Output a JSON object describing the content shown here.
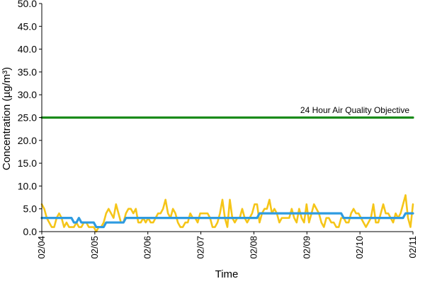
{
  "chart_data": {
    "type": "line",
    "xlabel": "Time",
    "ylabel": "Concentration (µg/m³)",
    "ylim": [
      0,
      50
    ],
    "y_ticks": [
      "0.0",
      "5.0",
      "10.0",
      "15.0",
      "20.0",
      "25.0",
      "30.0",
      "35.0",
      "40.0",
      "45.0",
      "50.0"
    ],
    "x_ticks": [
      "02/04",
      "02/05",
      "02/06",
      "02/07",
      "02/08",
      "02/09",
      "02/10",
      "02/11"
    ],
    "x_start": "02/04",
    "x_end": "02/11",
    "grid": false,
    "legend": false,
    "annotations": [
      {
        "text": "24 Hour Air Quality Objective",
        "value": 25
      }
    ],
    "series": [
      {
        "color": "#F5C518",
        "values": [
          6,
          5,
          3,
          2,
          1,
          1,
          3,
          4,
          3,
          1,
          2,
          1,
          1,
          1,
          2,
          1,
          1,
          2,
          2,
          1,
          1,
          1,
          0,
          1,
          1,
          2,
          4,
          5,
          4,
          3,
          6,
          4,
          2,
          2,
          4,
          5,
          5,
          4,
          5,
          2,
          2,
          3,
          2,
          3,
          2,
          2,
          3,
          4,
          4,
          5,
          7,
          4,
          3,
          5,
          4,
          2,
          1,
          1,
          2,
          2,
          4,
          3,
          3,
          2,
          4,
          4,
          4,
          4,
          3,
          1,
          1,
          2,
          4,
          7,
          3,
          1,
          7,
          3,
          2,
          3,
          3,
          5,
          3,
          2,
          3,
          4,
          6,
          6,
          2,
          4,
          5,
          5,
          7,
          4,
          5,
          4,
          2,
          3,
          3,
          3,
          3,
          5,
          3,
          2,
          5,
          3,
          2,
          6,
          2,
          4,
          6,
          5,
          4,
          2,
          1,
          3,
          3,
          2,
          2,
          1,
          1,
          3,
          3,
          2,
          2,
          4,
          5,
          4,
          4,
          3,
          2,
          1,
          2,
          3,
          6,
          2,
          2,
          4,
          6,
          4,
          4,
          3,
          2,
          4,
          3,
          4,
          6,
          8,
          3,
          1,
          6
        ]
      },
      {
        "color": "#2E9BE0",
        "values": [
          3,
          3,
          3,
          3,
          3,
          3,
          3,
          3,
          3,
          3,
          3,
          3,
          3,
          2,
          2,
          3,
          2,
          2,
          2,
          2,
          2,
          2,
          1,
          1,
          1,
          1,
          2,
          2,
          2,
          2,
          2,
          2,
          2,
          2,
          3,
          3,
          3,
          3,
          3,
          3,
          3,
          3,
          3,
          3,
          3,
          3,
          3,
          3,
          3,
          3,
          3,
          3,
          3,
          3,
          3,
          3,
          3,
          3,
          3,
          3,
          3,
          3,
          3,
          3,
          3,
          3,
          3,
          3,
          3,
          3,
          3,
          3,
          3,
          3,
          3,
          3,
          3,
          3,
          3,
          3,
          3,
          3,
          3,
          3,
          3,
          3,
          3,
          3,
          4,
          4,
          4,
          4,
          4,
          4,
          4,
          4,
          4,
          4,
          4,
          4,
          4,
          4,
          4,
          4,
          4,
          4,
          4,
          4,
          4,
          4,
          4,
          4,
          4,
          4,
          4,
          4,
          4,
          4,
          4,
          4,
          4,
          4,
          3,
          3,
          3,
          3,
          3,
          3,
          3,
          3,
          3,
          3,
          3,
          3,
          3,
          3,
          3,
          3,
          3,
          3,
          3,
          3,
          3,
          3,
          3,
          3,
          3,
          4,
          4,
          4,
          4
        ]
      },
      {
        "color": "#1A8C1A",
        "values": [
          25,
          25
        ]
      }
    ]
  }
}
